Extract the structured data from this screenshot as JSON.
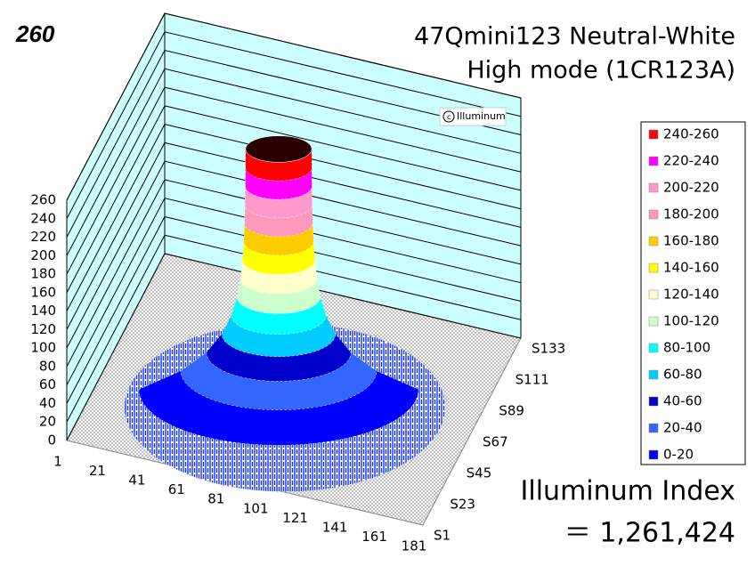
{
  "chart_data": {
    "type": "surface",
    "corner_label": "260",
    "title": [
      "47Qmini123 Neutral-White",
      "High mode (1CR123A)"
    ],
    "watermark": "Illuminum",
    "annotation": [
      "Illuminum Index",
      "＝ 1,261,424"
    ],
    "categories": [
      "1",
      "21",
      "41",
      "61",
      "81",
      "101",
      "121",
      "141",
      "161",
      "181"
    ],
    "series_names": [
      "S1",
      "S23",
      "S45",
      "S67",
      "S89",
      "S111",
      "S133"
    ],
    "zlim": [
      0,
      260
    ],
    "zticks": [
      0,
      20,
      40,
      60,
      80,
      100,
      120,
      140,
      160,
      180,
      200,
      220,
      240,
      260
    ],
    "legend": [
      {
        "label": "240-260",
        "color": "#ff0000"
      },
      {
        "label": "220-240",
        "color": "#ff00ff"
      },
      {
        "label": "200-220",
        "color": "#ff99cc"
      },
      {
        "label": "180-200",
        "color": "#ff99bb"
      },
      {
        "label": "160-180",
        "color": "#ffcc00"
      },
      {
        "label": "140-160",
        "color": "#ffff00"
      },
      {
        "label": "120-140",
        "color": "#ffffcc"
      },
      {
        "label": "100-120",
        "color": "#ccffcc"
      },
      {
        "label": "80-100",
        "color": "#00ffff"
      },
      {
        "label": "60-80",
        "color": "#00ccff"
      },
      {
        "label": "40-60",
        "color": "#0000cc"
      },
      {
        "label": "20-40",
        "color": "#3366ff"
      },
      {
        "label": "0-20",
        "color": "#0000ff"
      }
    ]
  }
}
